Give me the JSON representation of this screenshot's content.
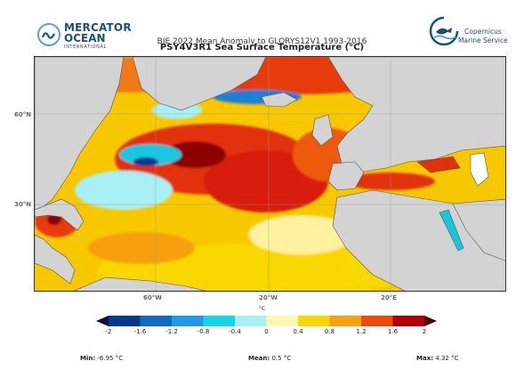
{
  "header": {
    "left_logo": {
      "line1": "MERCATOR",
      "line2": "OCEAN",
      "line3": "INTERNATIONAL",
      "icon": "mercator-wave-logo-icon"
    },
    "right_logo": {
      "line1": "Copernicus",
      "line2": "Marine Service",
      "icon": "copernicus-fish-logo-icon"
    },
    "title_overlay": "BIE 2022 Mean Anomaly to GLORYS12V1 1993-2016",
    "title": "PSY4V3R1 Sea Surface Temperature (°C)"
  },
  "map": {
    "lat_labels": [
      "60°N",
      "30°N"
    ],
    "lon_labels": [
      "60°W",
      "20°W",
      "20°E"
    ],
    "land_color": "#d3d3d3",
    "ocean_colors": {
      "deep_red": "#9e0000",
      "red": "#e8210c",
      "orange": "#f57b12",
      "yellow": "#f7d000",
      "pale_yellow": "#fff3a8",
      "light_cyan": "#a8f0f5",
      "cyan": "#14d7e8",
      "blue": "#1d7fd6",
      "dark_blue": "#063a8c"
    }
  },
  "colorbar": {
    "unit": "°C",
    "ticks": [
      "-2",
      "-1.6",
      "-1.2",
      "-0.8",
      "-0.4",
      "0",
      "0.4",
      "0.8",
      "1.2",
      "1.6",
      "2"
    ],
    "colors": [
      "#033a8a",
      "#0f6bc4",
      "#1e9ae6",
      "#12d5e8",
      "#a8f0f5",
      "#fff6b0",
      "#f9d700",
      "#f7a010",
      "#f04a0a",
      "#b00000"
    ],
    "under_color": "#02143f",
    "over_color": "#4a0000"
  },
  "stats": {
    "min_label": "Min:",
    "min_value": "-6.95 °C",
    "mean_label": "Mean:",
    "mean_value": "0.5 °C",
    "max_label": "Max:",
    "max_value": "4.32 °C"
  }
}
